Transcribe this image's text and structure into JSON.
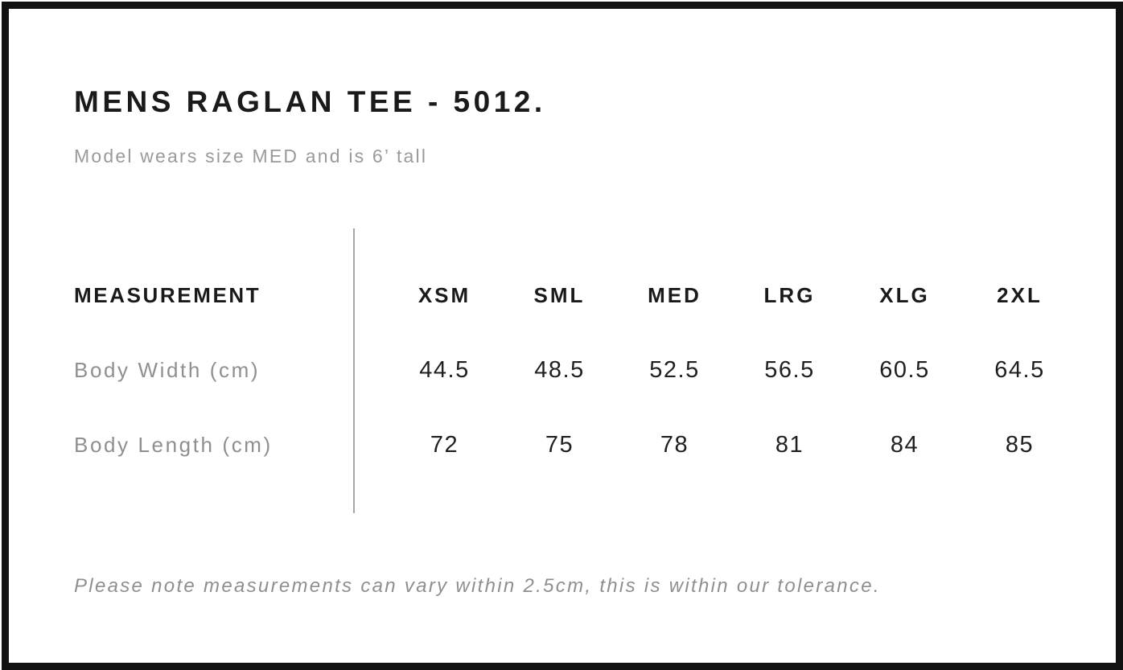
{
  "header": {
    "title": "MENS RAGLAN TEE - 5012.",
    "subtitle": "Model wears size MED and is 6’ tall"
  },
  "size_chart": {
    "measurement_header": "MEASUREMENT",
    "sizes": [
      "XSM",
      "SML",
      "MED",
      "LRG",
      "XLG",
      "2XL"
    ],
    "rows": [
      {
        "label": "Body Width (cm)",
        "values": [
          "44.5",
          "48.5",
          "52.5",
          "56.5",
          "60.5",
          "64.5"
        ]
      },
      {
        "label": "Body Length (cm)",
        "values": [
          "72",
          "75",
          "78",
          "81",
          "84",
          "85"
        ]
      }
    ]
  },
  "footnote": "Please note measurements can vary within 2.5cm, this is within our tolerance.",
  "colors": {
    "text_primary": "#1a1a1a",
    "text_muted": "#9a9a9a",
    "divider_gray": "#a6a6a6",
    "frame_black": "#121212"
  }
}
